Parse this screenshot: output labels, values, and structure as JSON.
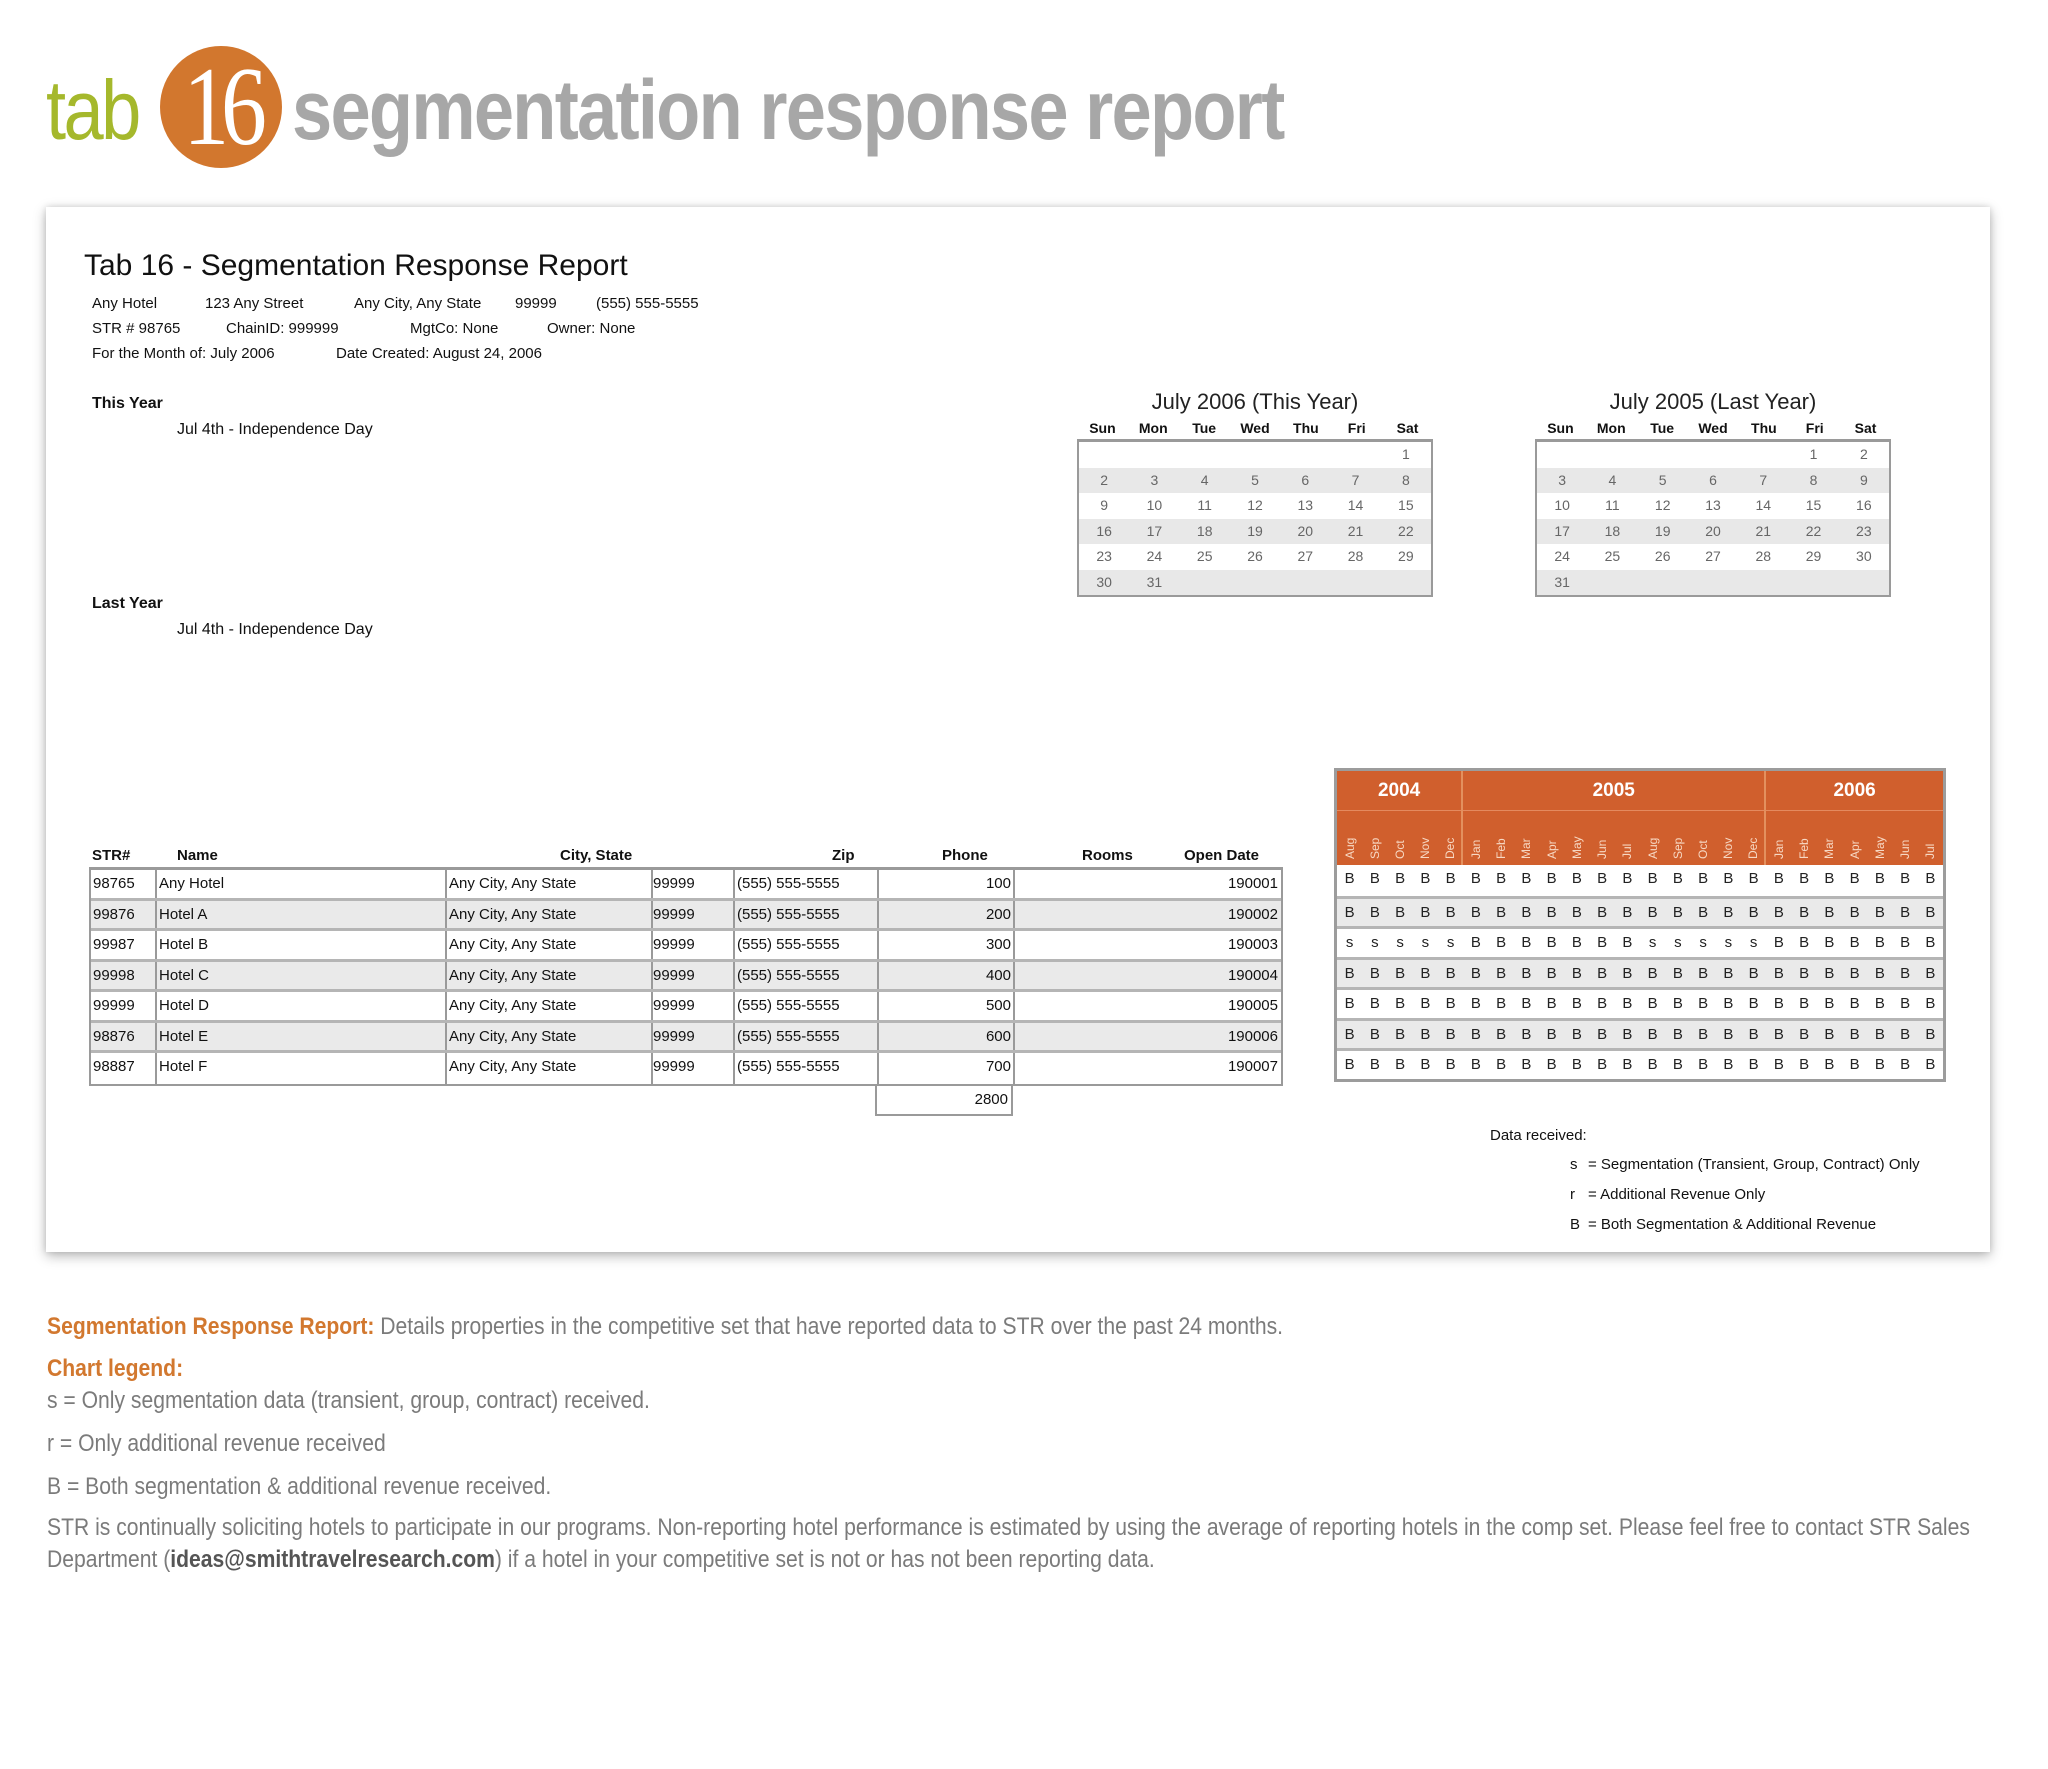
{
  "header": {
    "prefix": "tab",
    "number": "16",
    "title": "segmentation response report",
    "colors": {
      "prefix": "#a5b82c",
      "circle": "#d2772e",
      "title": "#a7a7a7"
    }
  },
  "report": {
    "title": "Tab 16 - Segmentation Response Report",
    "info": {
      "hotel": "Any Hotel",
      "street": "123 Any Street",
      "city_state": "Any City, Any State",
      "zip": "99999",
      "phone": "(555) 555-5555",
      "str": "STR # 98765",
      "chain_id": "ChainID: 999999",
      "mgtco": "MgtCo: None",
      "owner": "Owner: None",
      "month": "For the Month of: July 2006",
      "created": "Date Created: August 24, 2006"
    },
    "this_year": {
      "label": "This Year",
      "holiday": "Jul 4th - Independence Day"
    },
    "last_year": {
      "label": "Last Year",
      "holiday": "Jul 4th - Independence Day"
    }
  },
  "calendars": [
    {
      "title": "July 2006 (This Year)",
      "days": [
        "Sun",
        "Mon",
        "Tue",
        "Wed",
        "Thu",
        "Fri",
        "Sat"
      ],
      "weeks": [
        [
          "",
          "",
          "",
          "",
          "",
          "",
          "1"
        ],
        [
          "2",
          "3",
          "4",
          "5",
          "6",
          "7",
          "8"
        ],
        [
          "9",
          "10",
          "11",
          "12",
          "13",
          "14",
          "15"
        ],
        [
          "16",
          "17",
          "18",
          "19",
          "20",
          "21",
          "22"
        ],
        [
          "23",
          "24",
          "25",
          "26",
          "27",
          "28",
          "29"
        ],
        [
          "30",
          "31",
          "",
          "",
          "",
          "",
          ""
        ]
      ]
    },
    {
      "title": "July 2005 (Last Year)",
      "days": [
        "Sun",
        "Mon",
        "Tue",
        "Wed",
        "Thu",
        "Fri",
        "Sat"
      ],
      "weeks": [
        [
          "",
          "",
          "",
          "",
          "",
          "1",
          "2"
        ],
        [
          "3",
          "4",
          "5",
          "6",
          "7",
          "8",
          "9"
        ],
        [
          "10",
          "11",
          "12",
          "13",
          "14",
          "15",
          "16"
        ],
        [
          "17",
          "18",
          "19",
          "20",
          "21",
          "22",
          "23"
        ],
        [
          "24",
          "25",
          "26",
          "27",
          "28",
          "29",
          "30"
        ],
        [
          "31",
          "",
          "",
          "",
          "",
          "",
          ""
        ]
      ]
    }
  ],
  "table": {
    "columns": [
      "STR#",
      "Name",
      "City, State",
      "Zip",
      "Phone",
      "Rooms",
      "Open Date"
    ],
    "rows": [
      {
        "str": "98765",
        "name": "Any Hotel",
        "city": "Any City, Any State",
        "zip": "99999",
        "phone": "(555) 555-5555",
        "rooms": "100",
        "open": "190001"
      },
      {
        "str": "99876",
        "name": "Hotel A",
        "city": "Any City, Any State",
        "zip": "99999",
        "phone": "(555) 555-5555",
        "rooms": "200",
        "open": "190002"
      },
      {
        "str": "99987",
        "name": "Hotel B",
        "city": "Any City, Any State",
        "zip": "99999",
        "phone": "(555) 555-5555",
        "rooms": "300",
        "open": "190003"
      },
      {
        "str": "99998",
        "name": "Hotel C",
        "city": "Any City, Any State",
        "zip": "99999",
        "phone": "(555) 555-5555",
        "rooms": "400",
        "open": "190004"
      },
      {
        "str": "99999",
        "name": "Hotel D",
        "city": "Any City, Any State",
        "zip": "99999",
        "phone": "(555) 555-5555",
        "rooms": "500",
        "open": "190005"
      },
      {
        "str": "98876",
        "name": "Hotel E",
        "city": "Any City, Any State",
        "zip": "99999",
        "phone": "(555) 555-5555",
        "rooms": "600",
        "open": "190006"
      },
      {
        "str": "98887",
        "name": "Hotel F",
        "city": "Any City, Any State",
        "zip": "99999",
        "phone": "(555) 555-5555",
        "rooms": "700",
        "open": "190007"
      }
    ],
    "total_rooms": "2800"
  },
  "response_grid": {
    "header_color": "#d05f2d",
    "years": [
      {
        "label": "2004",
        "span": 5
      },
      {
        "label": "2005",
        "span": 12
      },
      {
        "label": "2006",
        "span": 7
      }
    ],
    "months": [
      "Aug",
      "Sep",
      "Oct",
      "Nov",
      "Dec",
      "Jan",
      "Feb",
      "Mar",
      "Apr",
      "May",
      "Jun",
      "Jul",
      "Aug",
      "Sep",
      "Oct",
      "Nov",
      "Dec",
      "Jan",
      "Feb",
      "Mar",
      "Apr",
      "May",
      "Jun",
      "Jul"
    ],
    "rows": [
      [
        "B",
        "B",
        "B",
        "B",
        "B",
        "B",
        "B",
        "B",
        "B",
        "B",
        "B",
        "B",
        "B",
        "B",
        "B",
        "B",
        "B",
        "B",
        "B",
        "B",
        "B",
        "B",
        "B",
        "B"
      ],
      [
        "B",
        "B",
        "B",
        "B",
        "B",
        "B",
        "B",
        "B",
        "B",
        "B",
        "B",
        "B",
        "B",
        "B",
        "B",
        "B",
        "B",
        "B",
        "B",
        "B",
        "B",
        "B",
        "B",
        "B"
      ],
      [
        "s",
        "s",
        "s",
        "s",
        "s",
        "B",
        "B",
        "B",
        "B",
        "B",
        "B",
        "B",
        "s",
        "s",
        "s",
        "s",
        "s",
        "B",
        "B",
        "B",
        "B",
        "B",
        "B",
        "B"
      ],
      [
        "B",
        "B",
        "B",
        "B",
        "B",
        "B",
        "B",
        "B",
        "B",
        "B",
        "B",
        "B",
        "B",
        "B",
        "B",
        "B",
        "B",
        "B",
        "B",
        "B",
        "B",
        "B",
        "B",
        "B"
      ],
      [
        "B",
        "B",
        "B",
        "B",
        "B",
        "B",
        "B",
        "B",
        "B",
        "B",
        "B",
        "B",
        "B",
        "B",
        "B",
        "B",
        "B",
        "B",
        "B",
        "B",
        "B",
        "B",
        "B",
        "B"
      ],
      [
        "B",
        "B",
        "B",
        "B",
        "B",
        "B",
        "B",
        "B",
        "B",
        "B",
        "B",
        "B",
        "B",
        "B",
        "B",
        "B",
        "B",
        "B",
        "B",
        "B",
        "B",
        "B",
        "B",
        "B"
      ],
      [
        "B",
        "B",
        "B",
        "B",
        "B",
        "B",
        "B",
        "B",
        "B",
        "B",
        "B",
        "B",
        "B",
        "B",
        "B",
        "B",
        "B",
        "B",
        "B",
        "B",
        "B",
        "B",
        "B",
        "B"
      ]
    ],
    "legend": {
      "title": "Data received:",
      "items": [
        {
          "key": "s",
          "text": "= Segmentation (Transient, Group, Contract) Only"
        },
        {
          "key": "r",
          "text": "= Additional Revenue Only"
        },
        {
          "key": "B",
          "text": "= Both Segmentation & Additional Revenue"
        }
      ]
    }
  },
  "description": {
    "lead_label": "Segmentation Response Report:",
    "lead_text": " Details properties in the competitive set that have reported data to STR over the past 24 months.",
    "legend_label": "Chart legend:",
    "legend_lines": [
      "s = Only segmentation data (transient, group, contract) received.",
      "r = Only additional revenue received",
      "B = Both segmentation & additional revenue received."
    ],
    "note_before": "STR is continually soliciting hotels to participate in our programs. Non-reporting hotel performance is estimated by using the average of reporting hotels in the comp set. Please feel free to contact STR Sales Department (",
    "note_email": "ideas@smithtravelresearch.com",
    "note_after": ") if a hotel in your competitive set is not or has not been reporting data.",
    "accent_color": "#d2782f"
  }
}
